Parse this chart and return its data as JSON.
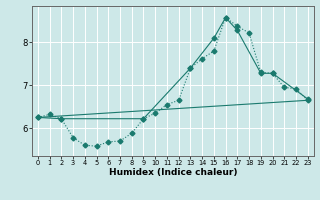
{
  "xlabel": "Humidex (Indice chaleur)",
  "bg_color": "#cde8e8",
  "grid_color": "#ffffff",
  "line_color": "#1a7a6e",
  "xlim": [
    -0.5,
    23.5
  ],
  "ylim": [
    5.35,
    8.85
  ],
  "xticks": [
    0,
    1,
    2,
    3,
    4,
    5,
    6,
    7,
    8,
    9,
    10,
    11,
    12,
    13,
    14,
    15,
    16,
    17,
    18,
    19,
    20,
    21,
    22,
    23
  ],
  "yticks": [
    6,
    7,
    8
  ],
  "curve1_x": [
    0,
    1,
    2,
    3,
    4,
    5,
    6,
    7,
    8,
    9,
    10,
    11,
    12,
    13,
    14,
    15,
    16,
    17,
    18,
    19,
    20,
    21,
    22,
    23
  ],
  "curve1_y": [
    6.25,
    6.32,
    6.22,
    5.78,
    5.6,
    5.58,
    5.68,
    5.7,
    5.88,
    6.22,
    6.35,
    6.55,
    6.65,
    7.4,
    7.62,
    7.8,
    8.58,
    8.38,
    8.22,
    7.3,
    7.28,
    6.95,
    6.92,
    6.65
  ],
  "curve2_x": [
    0,
    2,
    9,
    13,
    15,
    16,
    17,
    19,
    20,
    23
  ],
  "curve2_y": [
    6.25,
    6.22,
    6.22,
    7.4,
    8.1,
    8.58,
    8.28,
    7.28,
    7.28,
    6.68
  ],
  "line3_x": [
    0,
    23
  ],
  "line3_y": [
    6.25,
    6.65
  ]
}
